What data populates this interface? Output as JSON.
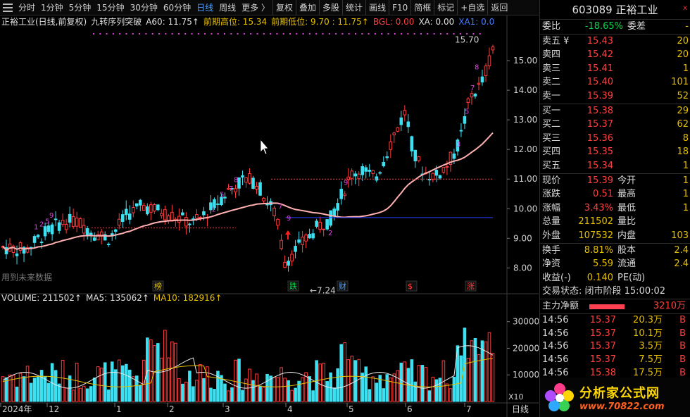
{
  "toolbar": {
    "items": [
      "分时",
      "1分钟",
      "5分钟",
      "15分钟",
      "30分钟",
      "60分钟",
      "日线",
      "周线",
      "更多 〉",
      "复权",
      "叠加",
      "多股",
      "统计",
      "画线",
      "F10",
      "简框",
      "标记",
      "+自选",
      "返回"
    ],
    "active": "日线"
  },
  "info": {
    "title": "正裕工业(日线,前复权)",
    "indicator": "九转序列突破",
    "a60": "A60: 11.75↑",
    "prev_high": "前期高位: 15.34",
    "prev_low": "前期低位: 9.70 : 11.75↑",
    "bgl": "BGL: 0.00",
    "xa": "XA: 0.00",
    "xa1": "XA1: 0.0"
  },
  "volume_info": {
    "volume": "VOLUME: 211502↑",
    "ma5": "MA5: 135062↑",
    "ma10": "MA10: 182916↑"
  },
  "price_axis": [
    "15.00",
    "14.00",
    "13.00",
    "12.00",
    "11.00",
    "10.00",
    "9.00",
    "8.00"
  ],
  "volume_axis": [
    "30000",
    "20000",
    "10000"
  ],
  "volume_axis_unit": "X10",
  "date_axis": [
    "2024年",
    "12",
    "1",
    "2",
    "3",
    "4",
    "5",
    "6",
    "7"
  ],
  "date_axis_button": "日线",
  "chart_labels": {
    "high_mark": "15.70",
    "low_mark": "7.24",
    "future_note": "用到未来数据",
    "event_bang": "榜",
    "event_die": "跌",
    "event_cai": "财",
    "event_s": "$",
    "event_zhang": "涨"
  },
  "chart_data": {
    "type": "candlestick",
    "price_range": [
      7.2,
      16.0
    ],
    "key_points": {
      "period_high": 15.7,
      "period_low": 7.24,
      "prev_high_level": 15.34,
      "prev_low_level": 9.7,
      "a60": 11.75
    },
    "volume_range": [
      0,
      36000
    ],
    "volume_last": 211502,
    "ma5_last": 135062,
    "ma10_last": 182916
  },
  "stock": {
    "code": "603089",
    "name": "正裕工业",
    "close_mark": "x"
  },
  "weibi": {
    "label": "委比",
    "value": "-18.65%",
    "label2": "委差",
    "value2": "-"
  },
  "asks": [
    {
      "label": "卖五 ¥",
      "price": "15.43",
      "vol": "20"
    },
    {
      "label": "卖四",
      "price": "15.42",
      "vol": "20"
    },
    {
      "label": "卖三",
      "price": "15.41",
      "vol": "1"
    },
    {
      "label": "卖二",
      "price": "15.40",
      "vol": "101"
    },
    {
      "label": "卖一",
      "price": "15.39",
      "vol": "52"
    }
  ],
  "bids": [
    {
      "label": "买一",
      "price": "15.38",
      "vol": "29"
    },
    {
      "label": "买二",
      "price": "15.37",
      "vol": "62"
    },
    {
      "label": "买三",
      "price": "15.36",
      "vol": "8"
    },
    {
      "label": "买四",
      "price": "15.35",
      "vol": "18"
    },
    {
      "label": "买五",
      "price": "15.34",
      "vol": "1"
    }
  ],
  "quote": [
    {
      "l1": "现价",
      "v1": "15.39",
      "l2": "今开",
      "v2": "1"
    },
    {
      "l1": "涨跌",
      "v1": "0.51",
      "l2": "最高",
      "v2": "1"
    },
    {
      "l1": "涨幅",
      "v1": "3.43%",
      "l2": "最低",
      "v2": "1"
    },
    {
      "l1": "总量",
      "v1": "211502",
      "l2": "量比",
      "v2": ""
    },
    {
      "l1": "外盘",
      "v1": "107532",
      "l2": "内盘",
      "v2": "103"
    }
  ],
  "stats": [
    {
      "l1": "换手",
      "v1": "8.81%",
      "l2": "股本",
      "v2": "2.4"
    },
    {
      "l1": "净资",
      "v1": "5.59",
      "l2": "流通",
      "v2": "2.4"
    },
    {
      "l1": "收益(-)",
      "v1": "0.140",
      "l2": "PE(动)",
      "v2": ""
    }
  ],
  "trade_status": "交易状态: 闭市阶段 15:00:02",
  "main_flow": {
    "label": "主力净额",
    "value": "3210万"
  },
  "ticks": [
    {
      "time": "14:56",
      "price": "15.37",
      "vol": "20.3万",
      "dir": "B"
    },
    {
      "time": "14:56",
      "price": "15.37",
      "vol": "10.1万",
      "dir": "B"
    },
    {
      "time": "14:56",
      "price": "15.37",
      "vol": "3.5万",
      "dir": "B"
    },
    {
      "time": "14:56",
      "price": "15.37",
      "vol": "7.5万",
      "dir": "B"
    },
    {
      "time": "14:56",
      "price": "15.38",
      "vol": "17.5万",
      "dir": "B"
    }
  ],
  "logo": {
    "text1": "分析家公式网",
    "text2": "www.70822.com"
  },
  "colors": {
    "up": "#ff3c3c",
    "down": "#3ce0f0",
    "ma": "#ffb0b0",
    "yellow": "#e6c000"
  }
}
